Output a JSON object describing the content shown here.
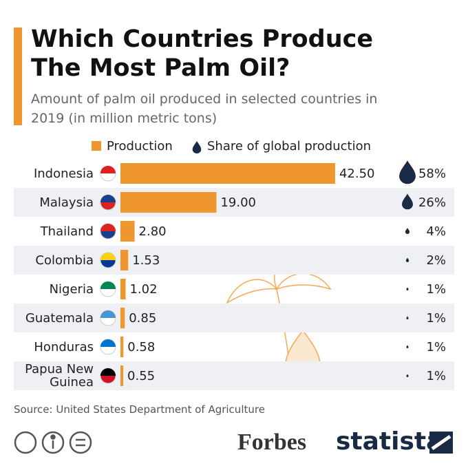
{
  "chart_data": {
    "type": "bar",
    "orientation": "horizontal",
    "title": "Which Countries Produce The Most Palm Oil?",
    "subtitle": "Amount of palm oil produced in selected countries in 2019 (in million metric tons)",
    "categories": [
      "Indonesia",
      "Malaysia",
      "Thailand",
      "Colombia",
      "Nigeria",
      "Guatemala",
      "Honduras",
      "Papua New Guinea"
    ],
    "series": [
      {
        "name": "Production",
        "color": "#f0962f",
        "values": [
          42.5,
          19,
          2.8,
          1.53,
          1.02,
          0.85,
          0.58,
          0.55
        ],
        "value_labels": [
          "42.50",
          "19.00",
          "2.80",
          "1.53",
          "1.02",
          "0.85",
          "0.58",
          "0.55"
        ]
      },
      {
        "name": "Share of global production",
        "color": "#1b2a44",
        "values": [
          58,
          26,
          4,
          2,
          1,
          1,
          1,
          1
        ],
        "value_labels": [
          "58%",
          "26%",
          "4%",
          "2%",
          "1%",
          "1%",
          "1%",
          "1%"
        ]
      }
    ],
    "source": "Source: United States Department of Agriculture",
    "logos": [
      "Forbes",
      "statista"
    ]
  }
}
